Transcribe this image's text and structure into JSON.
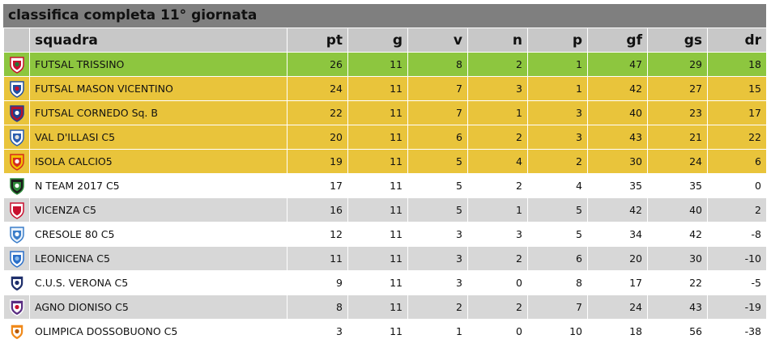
{
  "title": "classifica completa 11° giornata",
  "columns": {
    "team": "squadra",
    "pt": "pt",
    "g": "g",
    "v": "v",
    "n": "n",
    "p": "p",
    "gf": "gf",
    "gs": "gs",
    "dr": "dr"
  },
  "colors": {
    "leader": "#8dc63f",
    "playoff": "#e9c43b",
    "odd": "#ffffff",
    "even": "#d7d7d7",
    "title_bar": "#7f7f7f",
    "header": "#c8c8c8"
  },
  "rows": [
    {
      "team": "FUTSAL TRISSINO",
      "pt": "26",
      "g": "11",
      "v": "8",
      "n": "2",
      "p": "1",
      "gf": "47",
      "gs": "29",
      "dr": "18",
      "style": "green",
      "logo": "trissino-logo-icon"
    },
    {
      "team": "FUTSAL MASON VICENTINO",
      "pt": "24",
      "g": "11",
      "v": "7",
      "n": "3",
      "p": "1",
      "gf": "42",
      "gs": "27",
      "dr": "15",
      "style": "yellow",
      "logo": "mason-logo-icon"
    },
    {
      "team": "FUTSAL CORNEDO Sq. B",
      "pt": "22",
      "g": "11",
      "v": "7",
      "n": "1",
      "p": "3",
      "gf": "40",
      "gs": "23",
      "dr": "17",
      "style": "yellow",
      "logo": "cornedo-logo-icon"
    },
    {
      "team": "VAL D'ILLASI C5",
      "pt": "20",
      "g": "11",
      "v": "6",
      "n": "2",
      "p": "3",
      "gf": "43",
      "gs": "21",
      "dr": "22",
      "style": "yellow",
      "logo": "illasi-logo-icon"
    },
    {
      "team": "ISOLA CALCIO5",
      "pt": "19",
      "g": "11",
      "v": "5",
      "n": "4",
      "p": "2",
      "gf": "30",
      "gs": "24",
      "dr": "6",
      "style": "yellow",
      "logo": "isola-logo-icon"
    },
    {
      "team": "N TEAM 2017 C5",
      "pt": "17",
      "g": "11",
      "v": "5",
      "n": "2",
      "p": "4",
      "gf": "35",
      "gs": "35",
      "dr": "0",
      "style": "white",
      "logo": "nteam-logo-icon"
    },
    {
      "team": "VICENZA C5",
      "pt": "16",
      "g": "11",
      "v": "5",
      "n": "1",
      "p": "5",
      "gf": "42",
      "gs": "40",
      "dr": "2",
      "style": "grey",
      "logo": "vicenza-logo-icon"
    },
    {
      "team": "CRESOLE 80 C5",
      "pt": "12",
      "g": "11",
      "v": "3",
      "n": "3",
      "p": "5",
      "gf": "34",
      "gs": "42",
      "dr": "-8",
      "style": "white",
      "logo": "cresole-logo-icon"
    },
    {
      "team": "LEONICENA C5",
      "pt": "11",
      "g": "11",
      "v": "3",
      "n": "2",
      "p": "6",
      "gf": "20",
      "gs": "30",
      "dr": "-10",
      "style": "grey",
      "logo": "leonicena-logo-icon"
    },
    {
      "team": "C.U.S. VERONA C5",
      "pt": "9",
      "g": "11",
      "v": "3",
      "n": "0",
      "p": "8",
      "gf": "17",
      "gs": "22",
      "dr": "-5",
      "style": "white",
      "logo": "cus-verona-logo-icon"
    },
    {
      "team": "AGNO DIONISO C5",
      "pt": "8",
      "g": "11",
      "v": "2",
      "n": "2",
      "p": "7",
      "gf": "24",
      "gs": "43",
      "dr": "-19",
      "style": "grey",
      "logo": "agno-logo-icon"
    },
    {
      "team": "OLIMPICA DOSSOBUONO C5",
      "pt": "3",
      "g": "11",
      "v": "1",
      "n": "0",
      "p": "10",
      "gf": "18",
      "gs": "56",
      "dr": "-38",
      "style": "white",
      "logo": "olimpica-logo-icon"
    }
  ]
}
